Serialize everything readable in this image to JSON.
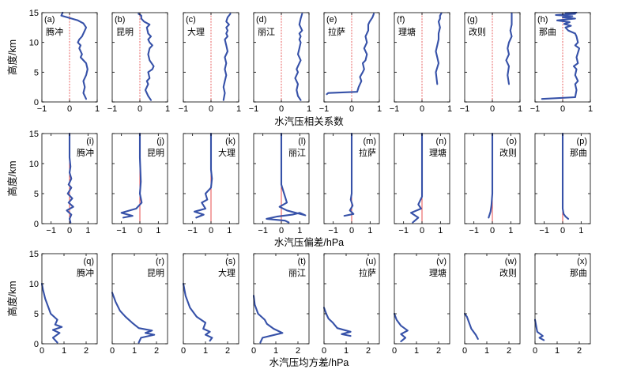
{
  "figure": {
    "stations": [
      "腾冲",
      "昆明",
      "大理",
      "丽江",
      "拉萨",
      "理塘",
      "改则",
      "那曲"
    ],
    "y_axis_label": "高度/km",
    "y_ticks": [
      0,
      5,
      10,
      15
    ]
  },
  "chart_data": [
    {
      "type": "line",
      "row": 1,
      "title": "",
      "xlabel": "水汽压相关系数",
      "ylabel": "高度/km",
      "xlim": [
        -1,
        1
      ],
      "ylim": [
        0,
        15
      ],
      "x_ticks": [
        -1,
        0,
        1
      ],
      "x_tick_labels": [
        "−1",
        "0",
        "1"
      ],
      "reference_line": 0,
      "panel_letters": [
        "(a)",
        "(b)",
        "(c)",
        "(d)",
        "(e)",
        "(f)",
        "(g)",
        "(h)"
      ],
      "series": [
        {
          "name": "腾冲",
          "x": [
            0.6,
            0.5,
            0.55,
            0.5,
            0.6,
            0.65,
            0.6,
            0.4,
            0.45,
            0.35,
            0.4,
            0.3,
            0.35,
            0.45,
            0.5,
            0.55,
            0.6,
            0.5,
            0.3,
            0.0,
            -0.3,
            -0.25
          ],
          "y": [
            0.5,
            1.5,
            2.5,
            3.5,
            4.5,
            5.5,
            6.5,
            7.5,
            8,
            9,
            9.5,
            10,
            10.5,
            11,
            11.5,
            12,
            12.5,
            13.2,
            13.7,
            14.1,
            14.5,
            15
          ]
        },
        {
          "name": "昆明",
          "x": [
            0.4,
            0.3,
            0.2,
            0.3,
            0.25,
            0.35,
            0.3,
            0.45,
            0.5,
            0.35,
            0.3,
            0.35,
            0.45,
            0.35,
            0.3,
            0.4,
            0.3,
            0.25,
            0.35,
            0.15,
            0.05,
            0.05,
            -0.05
          ],
          "y": [
            0.3,
            1,
            2,
            3,
            3.5,
            4,
            5,
            5.5,
            6,
            7,
            8,
            9,
            9.5,
            10,
            10.5,
            11,
            11.5,
            12.5,
            13,
            13.5,
            14,
            14.5,
            14.8
          ]
        },
        {
          "name": "大理",
          "x": [
            0.45,
            0.5,
            0.45,
            0.5,
            0.55,
            0.5,
            0.55,
            0.5,
            0.6,
            0.55,
            0.5,
            0.6,
            0.55,
            0.6,
            0.55,
            0.65,
            0.55,
            0.6,
            0.7
          ],
          "y": [
            0.3,
            1.5,
            2.5,
            3.5,
            4.5,
            5.5,
            6.5,
            7.5,
            8.5,
            9.5,
            10.5,
            11,
            11.5,
            12,
            12.5,
            13,
            13.5,
            14.2,
            14.8
          ]
        },
        {
          "name": "丽江",
          "x": [
            0.7,
            0.6,
            0.55,
            0.6,
            0.5,
            0.6,
            0.55,
            0.6,
            0.7,
            0.65,
            0.6,
            0.65,
            0.7,
            0.65,
            0.7,
            0.65,
            0.75,
            0.65,
            0.7,
            0.75
          ],
          "y": [
            0.3,
            1,
            2,
            3,
            4,
            5,
            5.5,
            6,
            7,
            7.5,
            8,
            9,
            10,
            10.5,
            11,
            11.5,
            12,
            13,
            14,
            14.8
          ]
        },
        {
          "name": "拉萨",
          "x": [
            -0.9,
            -0.85,
            0.2,
            0.25,
            0.35,
            0.3,
            0.4,
            0.45,
            0.4,
            0.5,
            0.55,
            0.45,
            0.55,
            0.5,
            0.6,
            0.6,
            0.65,
            0.75,
            0.8
          ],
          "y": [
            1.3,
            1.5,
            1.7,
            2.5,
            3.5,
            4.2,
            5,
            5.5,
            6.5,
            7,
            8,
            9,
            10,
            11,
            12,
            13,
            13.5,
            14.2,
            14.8
          ]
        },
        {
          "name": "理塘",
          "x": [
            0.55,
            0.5,
            0.6,
            0.55,
            0.5,
            0.55,
            0.6,
            0.6,
            0.65,
            0.6,
            0.65,
            0.65,
            0.7
          ],
          "y": [
            3,
            5,
            6.5,
            7.5,
            8.5,
            9.5,
            10.5,
            11.5,
            12.5,
            13.5,
            14,
            14.5,
            14.9
          ]
        },
        {
          "name": "改则",
          "x": [
            0.6,
            0.55,
            0.6,
            0.5,
            0.6,
            0.55,
            0.6,
            0.7,
            0.65,
            0.7,
            0.7,
            0.7
          ],
          "y": [
            3,
            4.5,
            6,
            7,
            8,
            9,
            10,
            11,
            12,
            13,
            14,
            14.9
          ]
        },
        {
          "name": "那曲",
          "x": [
            -0.75,
            0.45,
            0.5,
            0.45,
            0.55,
            0.45,
            0.5,
            0.4,
            0.55,
            0.5,
            0.6,
            0.45,
            0.55,
            0.5,
            0.45,
            0.2,
            0.1,
            0.3,
            0.05,
            0.25,
            -0.2,
            0.45,
            0.0,
            0.35,
            -0.25,
            0.45,
            0.2,
            0.5,
            0.1,
            0.4
          ],
          "y": [
            0.5,
            0.8,
            2,
            3,
            3.5,
            4.5,
            5.5,
            6,
            6.5,
            7.5,
            9,
            9.5,
            10,
            11,
            11.5,
            12,
            12.5,
            12.8,
            13.1,
            13.4,
            13.7,
            14,
            14.2,
            14.4,
            14.6,
            14.8,
            14.9,
            15,
            14.95,
            14.85
          ]
        }
      ]
    },
    {
      "type": "line",
      "row": 2,
      "title": "",
      "xlabel": "水汽压偏差/hPa",
      "ylabel": "高度/km",
      "xlim": [
        -1.5,
        1.5
      ],
      "ylim": [
        0,
        15
      ],
      "x_ticks": [
        -1,
        0,
        1
      ],
      "x_tick_labels": [
        "−1",
        "0",
        "1"
      ],
      "reference_line": 0,
      "panel_letters": [
        "(i)",
        "(j)",
        "(k)",
        "(l)",
        "(m)",
        "(n)",
        "(o)",
        "(p)"
      ],
      "series": [
        {
          "name": "腾冲",
          "x": [
            0.05,
            0.0,
            0.1,
            -0.15,
            0.2,
            -0.05,
            0.15,
            -0.1,
            0.1,
            -0.05,
            0.1,
            0.0,
            0.05,
            0.0,
            0.0,
            0.0,
            0.0
          ],
          "y": [
            0.2,
            0.8,
            1.5,
            2.2,
            2.8,
            3.5,
            4.2,
            5,
            6,
            6.5,
            7.5,
            8.5,
            9.5,
            11,
            12.5,
            14,
            15
          ]
        },
        {
          "name": "昆明",
          "x": [
            -0.9,
            -0.4,
            -1.0,
            -0.2,
            0.1,
            0.0,
            0.05,
            0.0,
            0.0
          ],
          "y": [
            1,
            1.3,
            1.8,
            2.5,
            3.5,
            5,
            7,
            11,
            15
          ]
        },
        {
          "name": "大理",
          "x": [
            -0.8,
            -0.4,
            -0.9,
            -0.3,
            -0.5,
            -0.2,
            -0.3,
            0.0,
            0.05,
            0.0,
            0.0,
            0.0
          ],
          "y": [
            1,
            1.5,
            2,
            2.5,
            3.5,
            4,
            5,
            6,
            7.5,
            9,
            12,
            15
          ]
        },
        {
          "name": "丽江",
          "x": [
            0.4,
            0.2,
            -0.8,
            -0.2,
            0.6,
            1.0,
            1.3,
            0.3,
            -0.1,
            0.3,
            0.2,
            0.1,
            0.0,
            0.0,
            0.0,
            0.0
          ],
          "y": [
            0.2,
            0.5,
            0.8,
            1.2,
            1.5,
            1.8,
            1.4,
            2.2,
            2.8,
            3.5,
            4.5,
            5.5,
            6.5,
            8,
            11,
            15
          ]
        },
        {
          "name": "拉萨",
          "x": [
            -0.4,
            0.1,
            -0.1,
            0.05,
            -0.05,
            0.0,
            0.0,
            0.0
          ],
          "y": [
            1.3,
            1.6,
            2.2,
            3,
            4,
            5,
            8,
            15
          ]
        },
        {
          "name": "理塘",
          "x": [
            -0.5,
            -0.2,
            -0.6,
            -0.05,
            -0.2,
            0.0,
            0.0,
            0.0
          ],
          "y": [
            0.2,
            1,
            1.8,
            2.5,
            3.2,
            4.5,
            8,
            15
          ]
        },
        {
          "name": "改则",
          "x": [
            -0.2,
            -0.1,
            -0.05,
            0.0,
            0.0,
            0.0
          ],
          "y": [
            1,
            2,
            3,
            5,
            10,
            15
          ]
        },
        {
          "name": "那曲",
          "x": [
            0.3,
            0.15,
            0.05,
            0.0,
            0.0,
            0.0
          ],
          "y": [
            0.8,
            1.2,
            1.6,
            2.5,
            8,
            15
          ]
        }
      ]
    },
    {
      "type": "line",
      "row": 3,
      "title": "",
      "xlabel": "水汽压均方差/hPa",
      "ylabel": "高度/km",
      "xlim": [
        0,
        2.5
      ],
      "ylim": [
        0,
        15
      ],
      "x_ticks": [
        0,
        1,
        2
      ],
      "x_tick_labels": [
        "0",
        "1",
        "2"
      ],
      "reference_line": null,
      "panel_letters": [
        "(q)",
        "(r)",
        "(s)",
        "(t)",
        "(u)",
        "(v)",
        "(w)",
        "(x)"
      ],
      "series": [
        {
          "name": "腾冲",
          "x": [
            0.7,
            0.5,
            0.8,
            0.5,
            0.9,
            0.6,
            0.7,
            0.4,
            0.3,
            0.15,
            0.05,
            0.0
          ],
          "y": [
            0.2,
            1,
            1.8,
            2.3,
            2.8,
            3.2,
            4,
            5,
            6,
            7.5,
            9,
            10
          ]
        },
        {
          "name": "昆明",
          "x": [
            1.2,
            1.3,
            1.9,
            1.5,
            1.8,
            1.2,
            0.9,
            0.6,
            0.35,
            0.15,
            0.0
          ],
          "y": [
            0.2,
            1,
            1.5,
            1.8,
            2.2,
            2.6,
            3.5,
            4.5,
            5.5,
            7,
            8.5
          ]
        },
        {
          "name": "大理",
          "x": [
            1.2,
            1.3,
            1.0,
            1.2,
            0.9,
            1.0,
            0.6,
            0.3,
            0.1,
            0.0
          ],
          "y": [
            0.5,
            1,
            1.5,
            2,
            2.5,
            3.5,
            4.5,
            6,
            8,
            10
          ]
        },
        {
          "name": "丽江",
          "x": [
            0.3,
            0.4,
            1.3,
            0.9,
            0.6,
            0.5,
            0.2,
            0.05,
            0.0
          ],
          "y": [
            0.2,
            1,
            1.8,
            2.5,
            3.3,
            4,
            5,
            6.5,
            8
          ]
        },
        {
          "name": "拉萨",
          "x": [
            1.2,
            0.8,
            1.2,
            0.6,
            0.4,
            0.2,
            0.1,
            0.0
          ],
          "y": [
            1.3,
            1.6,
            2,
            2.6,
            3.5,
            4.2,
            5,
            6
          ]
        },
        {
          "name": "理塘",
          "x": [
            0.3,
            0.5,
            0.3,
            0.6,
            0.3,
            0.1,
            0.0
          ],
          "y": [
            0.4,
            1,
            1.6,
            2.2,
            3,
            4,
            5
          ]
        },
        {
          "name": "改则",
          "x": [
            0.6,
            0.5,
            0.3,
            0.2,
            0.1,
            0.0
          ],
          "y": [
            0.8,
            1.5,
            2.5,
            3.5,
            4.5,
            5
          ]
        },
        {
          "name": "那曲",
          "x": [
            0.4,
            0.2,
            0.35,
            0.1,
            0.05,
            0.0
          ],
          "y": [
            0.6,
            1,
            1.3,
            2,
            3,
            4
          ]
        }
      ]
    }
  ]
}
